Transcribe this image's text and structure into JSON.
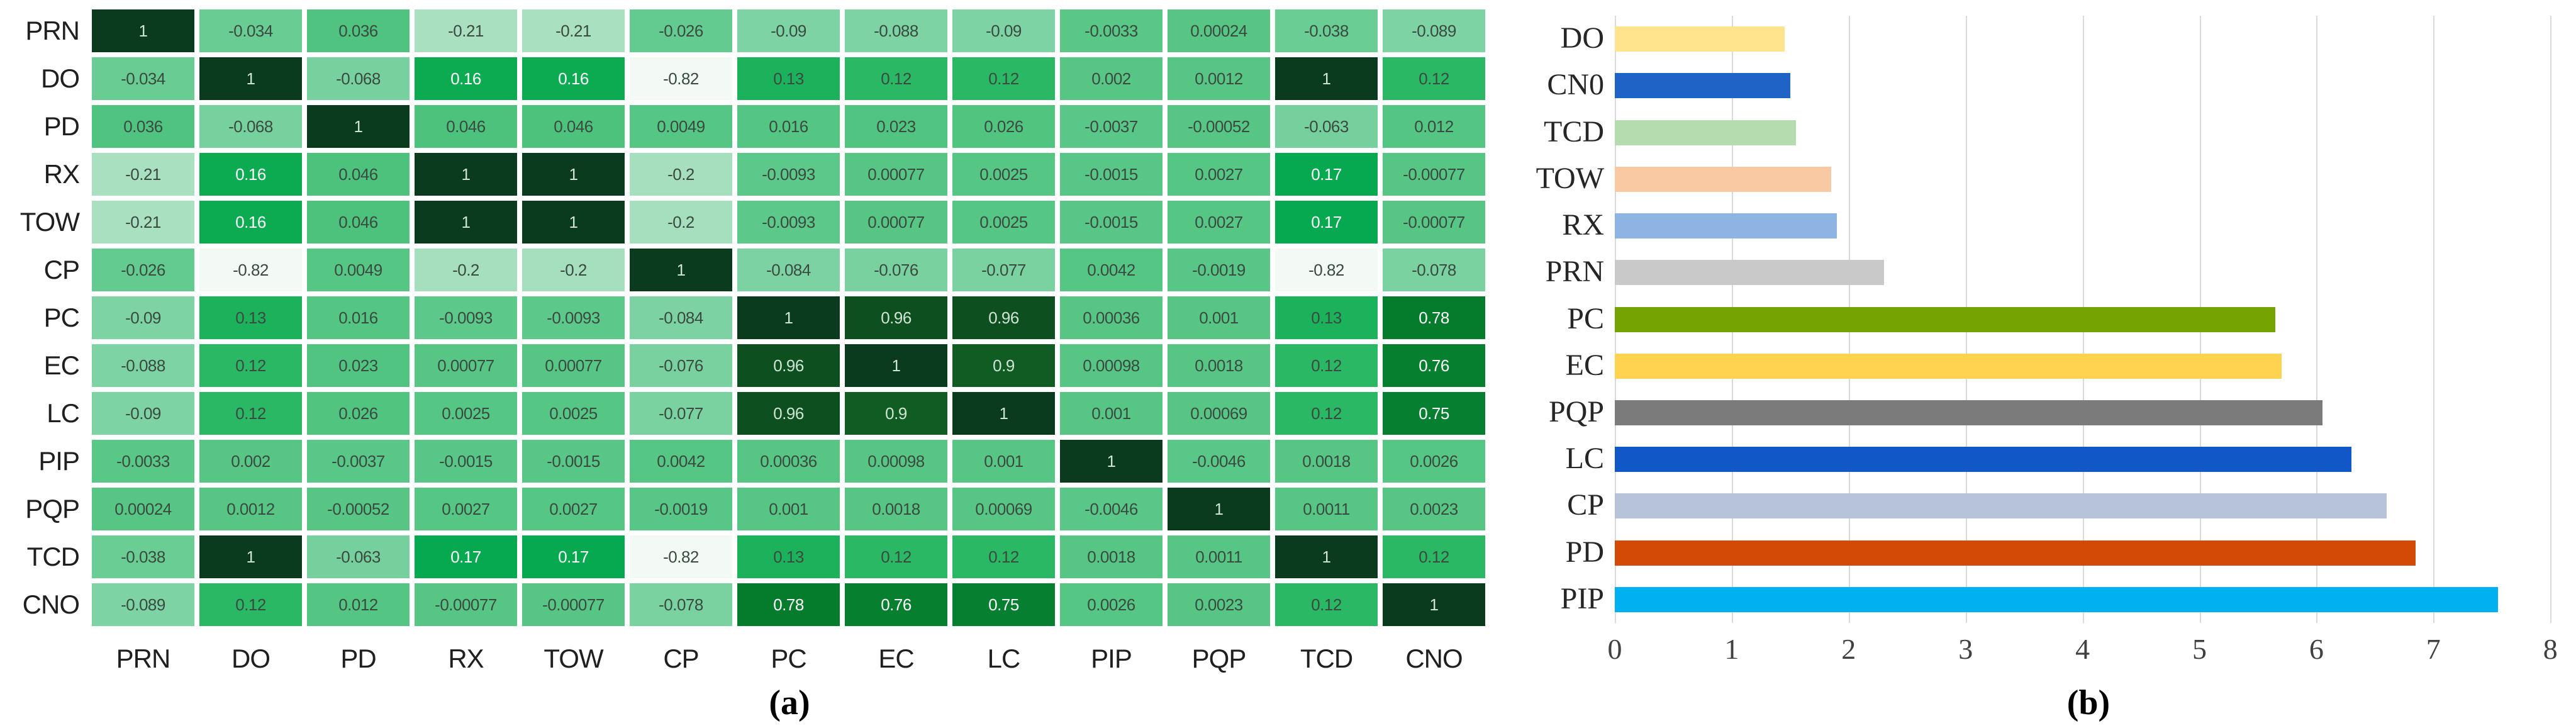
{
  "figure": {
    "caption_a": "(a)",
    "caption_b": "(b)",
    "background": "#ffffff"
  },
  "chart_data": [
    {
      "type": "heatmap",
      "title": "",
      "x_labels": [
        "PRN",
        "DO",
        "PD",
        "RX",
        "TOW",
        "CP",
        "PC",
        "EC",
        "LC",
        "PIP",
        "PQP",
        "TCD",
        "CNO"
      ],
      "y_labels": [
        "PRN",
        "DO",
        "PD",
        "RX",
        "TOW",
        "CP",
        "PC",
        "EC",
        "LC",
        "PIP",
        "PQP",
        "TCD",
        "CNO"
      ],
      "values": [
        [
          "1",
          "-0.034",
          "0.036",
          "-0.21",
          "-0.21",
          "-0.026",
          "-0.09",
          "-0.088",
          "-0.09",
          "-0.0033",
          "0.00024",
          "-0.038",
          "-0.089"
        ],
        [
          "-0.034",
          "1",
          "-0.068",
          "0.16",
          "0.16",
          "-0.82",
          "0.13",
          "0.12",
          "0.12",
          "0.002",
          "0.0012",
          "1",
          "0.12"
        ],
        [
          "0.036",
          "-0.068",
          "1",
          "0.046",
          "0.046",
          "0.0049",
          "0.016",
          "0.023",
          "0.026",
          "-0.0037",
          "-0.00052",
          "-0.063",
          "0.012"
        ],
        [
          "-0.21",
          "0.16",
          "0.046",
          "1",
          "1",
          "-0.2",
          "-0.0093",
          "0.00077",
          "0.0025",
          "-0.0015",
          "0.0027",
          "0.17",
          "-0.00077"
        ],
        [
          "-0.21",
          "0.16",
          "0.046",
          "1",
          "1",
          "-0.2",
          "-0.0093",
          "0.00077",
          "0.0025",
          "-0.0015",
          "0.0027",
          "0.17",
          "-0.00077"
        ],
        [
          "-0.026",
          "-0.82",
          "0.0049",
          "-0.2",
          "-0.2",
          "1",
          "-0.084",
          "-0.076",
          "-0.077",
          "0.0042",
          "-0.0019",
          "-0.82",
          "-0.078"
        ],
        [
          "-0.09",
          "0.13",
          "0.016",
          "-0.0093",
          "-0.0093",
          "-0.084",
          "1",
          "0.96",
          "0.96",
          "0.00036",
          "0.001",
          "0.13",
          "0.78"
        ],
        [
          "-0.088",
          "0.12",
          "0.023",
          "0.00077",
          "0.00077",
          "-0.076",
          "0.96",
          "1",
          "0.9",
          "0.00098",
          "0.0018",
          "0.12",
          "0.76"
        ],
        [
          "-0.09",
          "0.12",
          "0.026",
          "0.0025",
          "0.0025",
          "-0.077",
          "0.96",
          "0.9",
          "1",
          "0.001",
          "0.00069",
          "0.12",
          "0.75"
        ],
        [
          "-0.0033",
          "0.002",
          "-0.0037",
          "-0.0015",
          "-0.0015",
          "0.0042",
          "0.00036",
          "0.00098",
          "0.001",
          "1",
          "-0.0046",
          "0.0018",
          "0.0026"
        ],
        [
          "0.00024",
          "0.0012",
          "-0.00052",
          "0.0027",
          "0.0027",
          "-0.0019",
          "0.001",
          "0.0018",
          "0.00069",
          "-0.0046",
          "1",
          "0.0011",
          "0.0023"
        ],
        [
          "-0.038",
          "1",
          "-0.063",
          "0.17",
          "0.17",
          "-0.82",
          "0.13",
          "0.12",
          "0.12",
          "0.0018",
          "0.0011",
          "1",
          "0.12"
        ],
        [
          "-0.089",
          "0.12",
          "0.012",
          "-0.00077",
          "-0.00077",
          "-0.078",
          "0.78",
          "0.76",
          "0.75",
          "0.0026",
          "0.0023",
          "0.12",
          "1"
        ]
      ],
      "colormap_anchors": [
        [
          -0.82,
          "#f3faf5"
        ],
        [
          -0.21,
          "#a9e0c0"
        ],
        [
          -0.09,
          "#7ed3a4"
        ],
        [
          -0.063,
          "#76d09d"
        ],
        [
          -0.034,
          "#68cc93"
        ],
        [
          0,
          "#57c685"
        ],
        [
          0.046,
          "#4dc27d"
        ],
        [
          0.12,
          "#2ab865"
        ],
        [
          0.13,
          "#1cb25c"
        ],
        [
          0.17,
          "#06a94f"
        ],
        [
          0.75,
          "#068030"
        ],
        [
          0.78,
          "#057c2c"
        ],
        [
          0.9,
          "#115c23"
        ],
        [
          0.96,
          "#0e4f20"
        ],
        [
          1,
          "#0a3b1e"
        ]
      ],
      "cell_text_dark": "#3a4a40",
      "cell_text_light": "#ffffff",
      "cell_text_pale": "#cfe4d6",
      "grid": false,
      "legend": "none"
    },
    {
      "type": "bar",
      "orientation": "horizontal",
      "categories": [
        "DO",
        "CN0",
        "TCD",
        "TOW",
        "RX",
        "PRN",
        "PC",
        "EC",
        "PQP",
        "LC",
        "CP",
        "PD",
        "PIP"
      ],
      "values": [
        1.45,
        1.5,
        1.55,
        1.85,
        1.9,
        2.3,
        5.65,
        5.7,
        6.05,
        6.3,
        6.6,
        6.85,
        7.55
      ],
      "colors": [
        "#ffe48d",
        "#1e63c5",
        "#b4dcae",
        "#f9c9a4",
        "#8eb4e3",
        "#c9c9c9",
        "#74a302",
        "#ffd24f",
        "#7b7b7b",
        "#1257c8",
        "#b6c3d9",
        "#d24a06",
        "#00b0f0"
      ],
      "xlabel": "",
      "ylabel": "",
      "xlim": [
        0,
        8
      ],
      "x_ticks": [
        "0",
        "1",
        "2",
        "3",
        "4",
        "5",
        "6",
        "7",
        "8"
      ],
      "gridline_color": "#d9d9d9",
      "grid": true,
      "legend": "none"
    }
  ]
}
